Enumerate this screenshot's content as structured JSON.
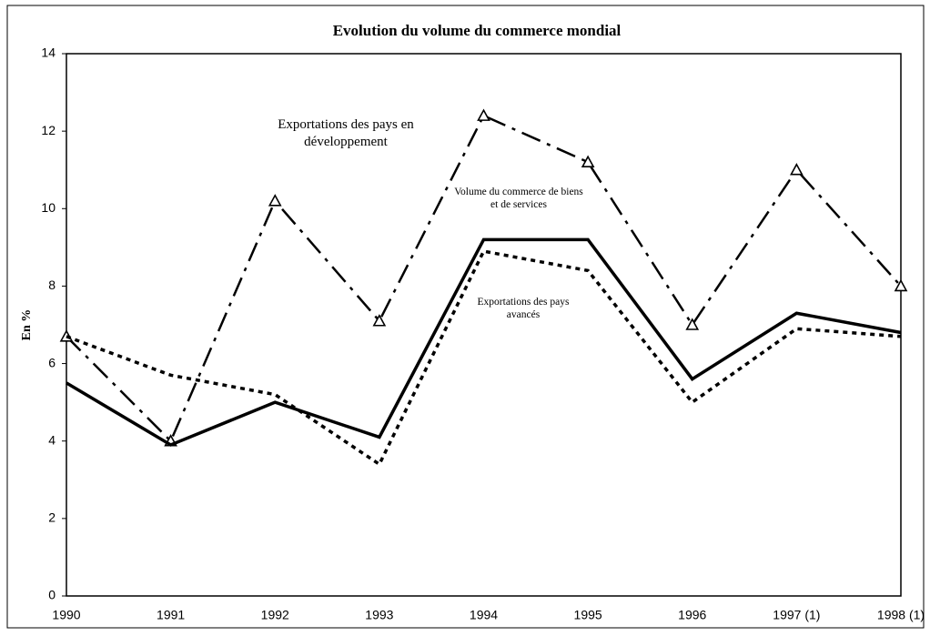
{
  "chart_data": {
    "type": "line",
    "title": "Evolution du volume du commerce mondial",
    "y_label": "En %",
    "categories": [
      "1990",
      "1991",
      "1992",
      "1993",
      "1994",
      "1995",
      "1996",
      "1997 (1)",
      "1998 (1)"
    ],
    "ylim": [
      0,
      14
    ],
    "yticks": [
      0,
      2,
      4,
      6,
      8,
      10,
      12,
      14
    ],
    "series": [
      {
        "name": "Exportations des pays en développement",
        "color": "#000000",
        "values": [
          6.7,
          4.0,
          10.2,
          7.1,
          12.4,
          11.2,
          7.0,
          11.0,
          8.0
        ]
      },
      {
        "name": "Volume du commerce de biens et de services",
        "color": "#000000",
        "values": [
          5.5,
          3.9,
          5.0,
          4.1,
          9.2,
          9.2,
          5.6,
          7.3,
          6.8
        ]
      },
      {
        "name": "Exportations des pays avancés",
        "color": "#000000",
        "values": [
          6.7,
          5.7,
          5.2,
          3.4,
          8.9,
          8.4,
          5.0,
          6.9,
          6.7
        ]
      }
    ]
  }
}
